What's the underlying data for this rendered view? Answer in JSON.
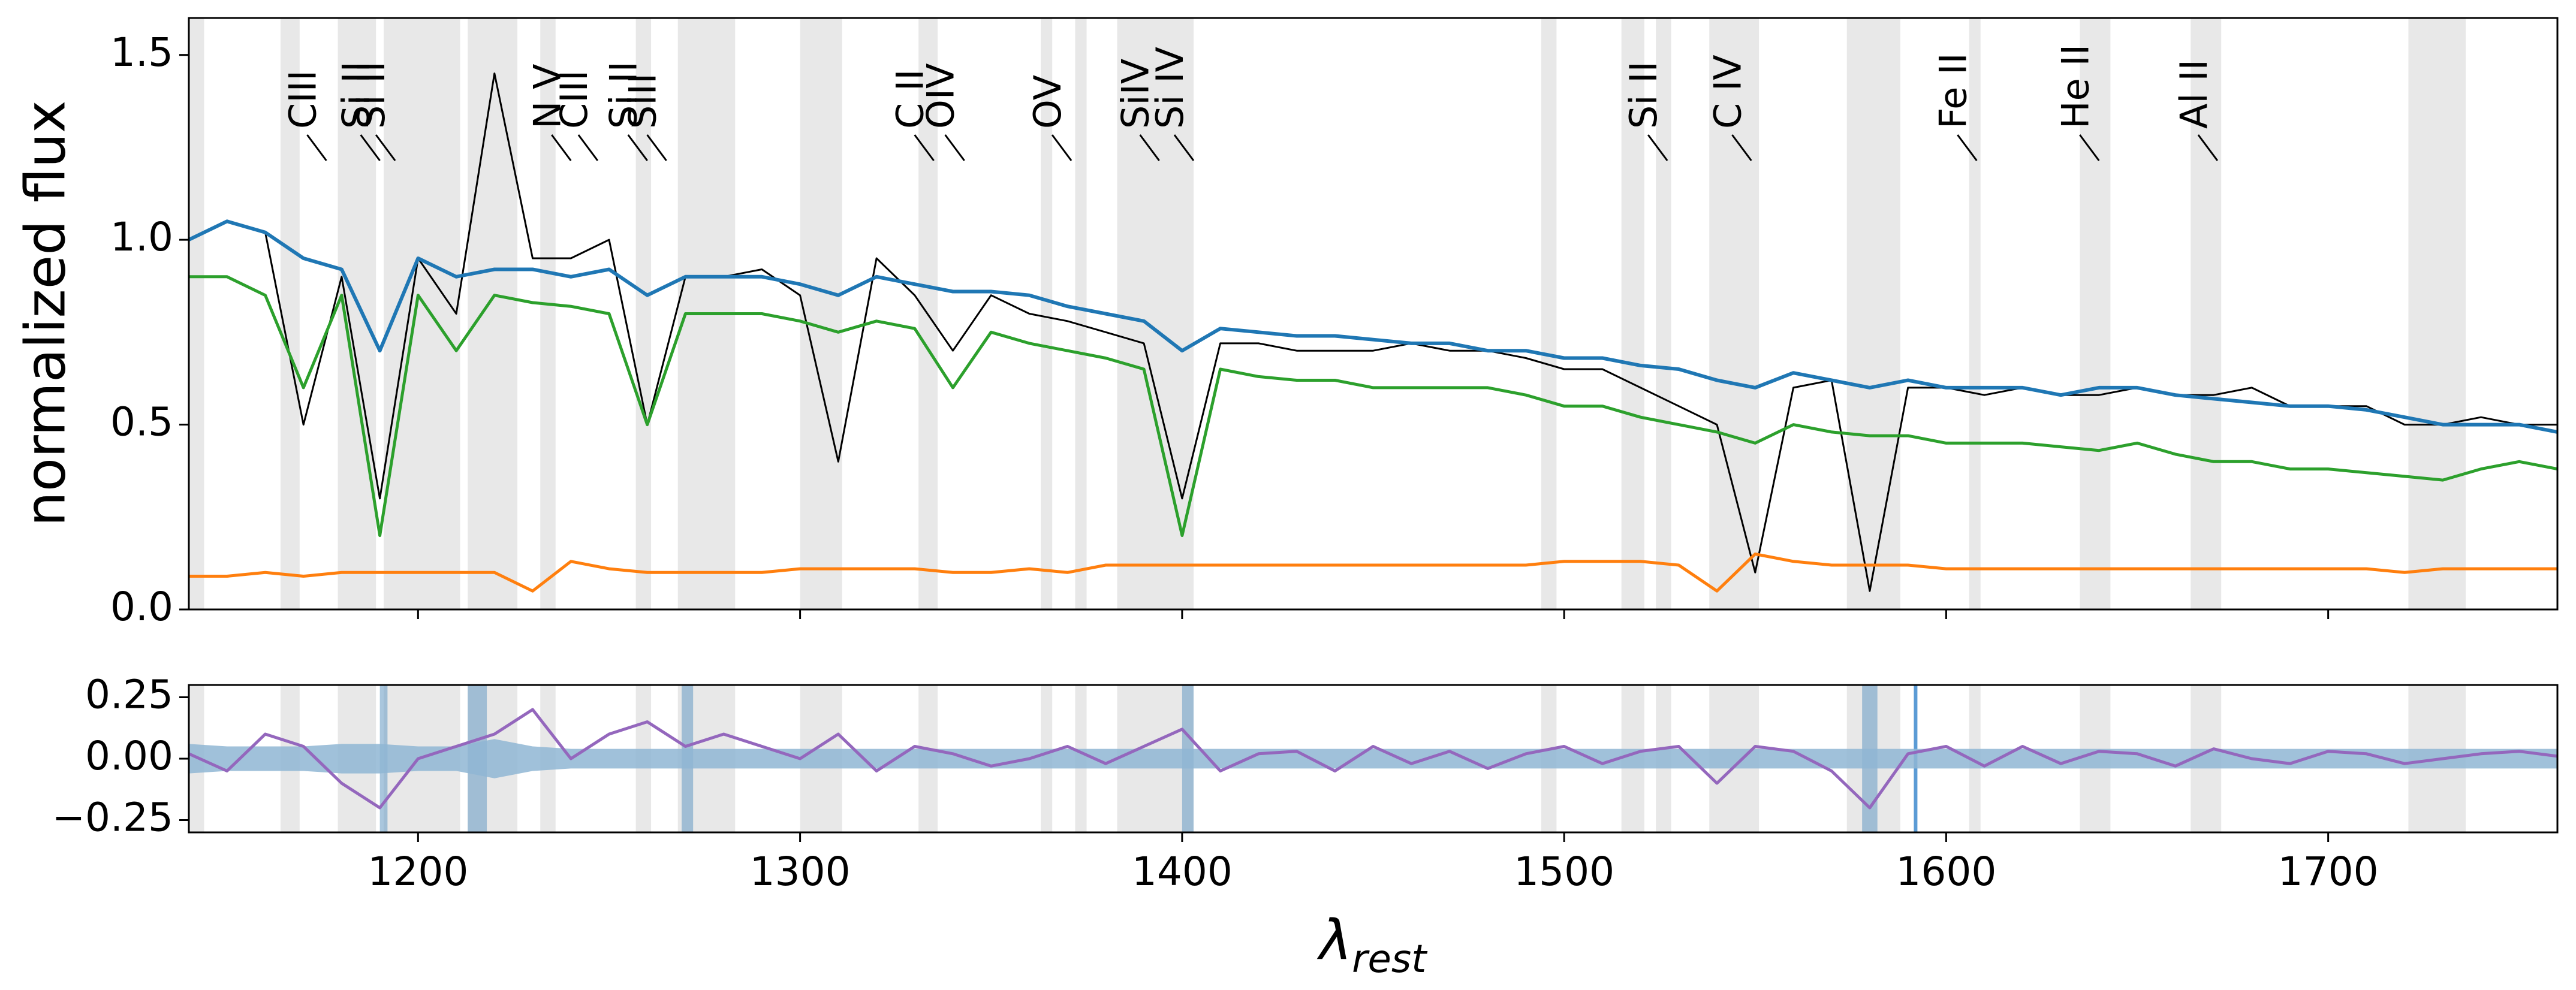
{
  "chart_data": [
    {
      "type": "line",
      "ylabel": "normalized flux",
      "xlim": [
        1140,
        1760
      ],
      "ylim": [
        0,
        1.6
      ],
      "yticks": [
        {
          "value": 0,
          "label": "0.0"
        },
        0.5,
        {
          "value": 1,
          "label": "1.0"
        },
        1.5
      ],
      "x": [
        1140,
        1150,
        1160,
        1170,
        1180,
        1190,
        1200,
        1210,
        1220,
        1230,
        1240,
        1250,
        1260,
        1270,
        1280,
        1290,
        1300,
        1310,
        1320,
        1330,
        1340,
        1350,
        1360,
        1370,
        1380,
        1390,
        1400,
        1410,
        1420,
        1430,
        1440,
        1450,
        1460,
        1470,
        1480,
        1490,
        1500,
        1510,
        1520,
        1530,
        1540,
        1550,
        1560,
        1570,
        1580,
        1590,
        1600,
        1610,
        1620,
        1630,
        1640,
        1650,
        1660,
        1670,
        1680,
        1690,
        1700,
        1710,
        1720,
        1730,
        1740,
        1750,
        1760
      ],
      "series": [
        {
          "color": "#000000",
          "width": 3,
          "values": [
            1.0,
            1.05,
            1.02,
            0.5,
            0.9,
            0.3,
            0.95,
            0.8,
            1.45,
            0.95,
            0.95,
            1.0,
            0.5,
            0.9,
            0.9,
            0.92,
            0.85,
            0.4,
            0.95,
            0.85,
            0.7,
            0.85,
            0.8,
            0.78,
            0.75,
            0.72,
            0.3,
            0.72,
            0.72,
            0.7,
            0.7,
            0.7,
            0.72,
            0.7,
            0.7,
            0.68,
            0.65,
            0.65,
            0.6,
            0.55,
            0.5,
            0.1,
            0.6,
            0.62,
            0.05,
            0.6,
            0.6,
            0.58,
            0.6,
            0.58,
            0.58,
            0.6,
            0.58,
            0.58,
            0.6,
            0.55,
            0.55,
            0.55,
            0.5,
            0.5,
            0.52,
            0.5,
            0.5
          ]
        },
        {
          "color": "#2ca02c",
          "width": 5,
          "values": [
            0.9,
            0.9,
            0.85,
            0.6,
            0.85,
            0.2,
            0.85,
            0.7,
            0.85,
            0.83,
            0.82,
            0.8,
            0.5,
            0.8,
            0.8,
            0.8,
            0.78,
            0.75,
            0.78,
            0.76,
            0.6,
            0.75,
            0.72,
            0.7,
            0.68,
            0.65,
            0.2,
            0.65,
            0.63,
            0.62,
            0.62,
            0.6,
            0.6,
            0.6,
            0.6,
            0.58,
            0.55,
            0.55,
            0.52,
            0.5,
            0.48,
            0.45,
            0.5,
            0.48,
            0.47,
            0.47,
            0.45,
            0.45,
            0.45,
            0.44,
            0.43,
            0.45,
            0.42,
            0.4,
            0.4,
            0.38,
            0.38,
            0.37,
            0.36,
            0.35,
            0.38,
            0.4,
            0.38
          ]
        },
        {
          "color": "#1f77b4",
          "width": 6,
          "values": [
            1.0,
            1.05,
            1.02,
            0.95,
            0.92,
            0.7,
            0.95,
            0.9,
            0.92,
            0.92,
            0.9,
            0.92,
            0.85,
            0.9,
            0.9,
            0.9,
            0.88,
            0.85,
            0.9,
            0.88,
            0.86,
            0.86,
            0.85,
            0.82,
            0.8,
            0.78,
            0.7,
            0.76,
            0.75,
            0.74,
            0.74,
            0.73,
            0.72,
            0.72,
            0.7,
            0.7,
            0.68,
            0.68,
            0.66,
            0.65,
            0.62,
            0.6,
            0.64,
            0.62,
            0.6,
            0.62,
            0.6,
            0.6,
            0.6,
            0.58,
            0.6,
            0.6,
            0.58,
            0.57,
            0.56,
            0.55,
            0.55,
            0.54,
            0.52,
            0.5,
            0.5,
            0.5,
            0.48
          ]
        },
        {
          "color": "#ff7f0e",
          "width": 5,
          "values": [
            0.09,
            0.09,
            0.1,
            0.09,
            0.1,
            0.1,
            0.1,
            0.1,
            0.1,
            0.05,
            0.13,
            0.11,
            0.1,
            0.1,
            0.1,
            0.1,
            0.11,
            0.11,
            0.11,
            0.11,
            0.1,
            0.1,
            0.11,
            0.1,
            0.12,
            0.12,
            0.12,
            0.12,
            0.12,
            0.12,
            0.12,
            0.12,
            0.12,
            0.12,
            0.12,
            0.12,
            0.13,
            0.13,
            0.13,
            0.12,
            0.05,
            0.15,
            0.13,
            0.12,
            0.12,
            0.12,
            0.11,
            0.11,
            0.11,
            0.11,
            0.11,
            0.11,
            0.11,
            0.11,
            0.11,
            0.11,
            0.11,
            0.11,
            0.1,
            0.11,
            0.11,
            0.11,
            0.11
          ]
        }
      ],
      "shaded_regions": [
        [
          1138,
          1144
        ],
        [
          1164,
          1169
        ],
        [
          1179,
          1189
        ],
        [
          1191,
          1211
        ],
        [
          1213,
          1226
        ],
        [
          1232,
          1236
        ],
        [
          1257,
          1261
        ],
        [
          1268,
          1283
        ],
        [
          1300,
          1311
        ],
        [
          1331,
          1336
        ],
        [
          1363,
          1366
        ],
        [
          1372,
          1375
        ],
        [
          1383,
          1403
        ],
        [
          1494,
          1498
        ],
        [
          1515,
          1521
        ],
        [
          1524,
          1528
        ],
        [
          1538,
          1551
        ],
        [
          1574,
          1588
        ],
        [
          1606,
          1609
        ],
        [
          1635,
          1643
        ],
        [
          1664,
          1672
        ],
        [
          1721,
          1736
        ]
      ],
      "annotations": [
        {
          "text": "CIII",
          "x": 1176
        },
        {
          "text": "Si II",
          "x": 1190
        },
        {
          "text": "Si II",
          "x": 1194
        },
        {
          "text": "N V",
          "x": 1240
        },
        {
          "text": "CIII",
          "x": 1247
        },
        {
          "text": "Si II",
          "x": 1260
        },
        {
          "text": "SiII",
          "x": 1265
        },
        {
          "text": "C II",
          "x": 1335
        },
        {
          "text": "OIV",
          "x": 1343
        },
        {
          "text": "OV",
          "x": 1371
        },
        {
          "text": "SiIV",
          "x": 1394
        },
        {
          "text": "Si IV",
          "x": 1403
        },
        {
          "text": "Si II",
          "x": 1527
        },
        {
          "text": "C IV",
          "x": 1549
        },
        {
          "text": "Fe II",
          "x": 1608
        },
        {
          "text": "He II",
          "x": 1640
        },
        {
          "text": "Al II",
          "x": 1671
        }
      ]
    },
    {
      "type": "line",
      "xlabel": {
        "symbol": "λ",
        "subscript": "rest"
      },
      "xlim": [
        1140,
        1760
      ],
      "ylim": [
        -0.3,
        0.3
      ],
      "xticks": [
        1200,
        1300,
        1400,
        1500,
        1600,
        1700
      ],
      "yticks": [
        {
          "value": -0.25,
          "label": "−0.25"
        },
        {
          "value": 0,
          "label": "0.00"
        },
        0.25
      ],
      "x": [
        1140,
        1150,
        1160,
        1170,
        1180,
        1190,
        1200,
        1210,
        1220,
        1230,
        1240,
        1250,
        1260,
        1270,
        1280,
        1290,
        1300,
        1310,
        1320,
        1330,
        1340,
        1350,
        1360,
        1370,
        1380,
        1390,
        1400,
        1410,
        1420,
        1430,
        1440,
        1450,
        1460,
        1470,
        1480,
        1490,
        1500,
        1510,
        1520,
        1530,
        1540,
        1550,
        1560,
        1570,
        1580,
        1590,
        1600,
        1610,
        1620,
        1630,
        1640,
        1650,
        1660,
        1670,
        1680,
        1690,
        1700,
        1710,
        1720,
        1730,
        1740,
        1750,
        1760
      ],
      "band": {
        "color": "#8fb6d3",
        "values": [
          0.06,
          0.05,
          0.05,
          0.05,
          0.06,
          0.06,
          0.05,
          0.05,
          0.08,
          0.05,
          0.04,
          0.04,
          0.04,
          0.04,
          0.04,
          0.04,
          0.04,
          0.04,
          0.04,
          0.04,
          0.04,
          0.04,
          0.04,
          0.04,
          0.04,
          0.04,
          0.04,
          0.04,
          0.04,
          0.04,
          0.04,
          0.04,
          0.04,
          0.04,
          0.04,
          0.04,
          0.04,
          0.04,
          0.04,
          0.04,
          0.04,
          0.04,
          0.04,
          0.04,
          0.04,
          0.04,
          0.04,
          0.04,
          0.04,
          0.04,
          0.04,
          0.04,
          0.04,
          0.04,
          0.04,
          0.04,
          0.04,
          0.04,
          0.04,
          0.04,
          0.04,
          0.04,
          0.04
        ]
      },
      "series": [
        {
          "color": "#9467bd",
          "width": 5,
          "values": [
            0.02,
            -0.05,
            0.1,
            0.05,
            -0.1,
            -0.2,
            0.0,
            0.05,
            0.1,
            0.2,
            0.0,
            0.1,
            0.15,
            0.05,
            0.1,
            0.05,
            0.0,
            0.1,
            -0.05,
            0.05,
            0.02,
            -0.03,
            0.0,
            0.05,
            -0.02,
            0.05,
            0.12,
            -0.05,
            0.02,
            0.03,
            -0.05,
            0.05,
            -0.02,
            0.03,
            -0.04,
            0.02,
            0.05,
            -0.02,
            0.03,
            0.05,
            -0.1,
            0.05,
            0.03,
            -0.05,
            -0.2,
            0.02,
            0.05,
            -0.03,
            0.05,
            -0.02,
            0.03,
            0.02,
            -0.03,
            0.04,
            0.0,
            -0.02,
            0.03,
            0.02,
            -0.02,
            0.0,
            0.02,
            0.03,
            0.01
          ]
        }
      ],
      "blue_regions": [
        [
          1190,
          1192
        ],
        [
          1213,
          1218
        ],
        [
          1269,
          1272
        ],
        [
          1400,
          1403
        ],
        [
          1578,
          1582
        ]
      ],
      "vlines": [
        1592
      ]
    }
  ]
}
